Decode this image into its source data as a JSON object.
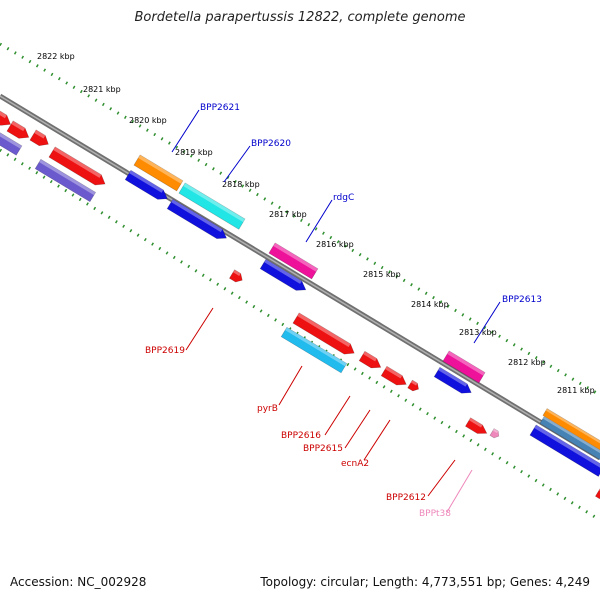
{
  "title": "Bordetella parapertussis 12822, complete genome",
  "footer": {
    "accession": "Accession: NC_002928",
    "stats": "Topology: circular; Length: 4,773,551 bp; Genes: 4,249"
  },
  "colors": {
    "backbone": "#808080",
    "tick": "#2f8f2f",
    "label_top": "#0000cc",
    "label_bottom": "#cc0000",
    "label_trna": "#ee88bb"
  },
  "ticks": [
    "2822 kbp",
    "2821 kbp",
    "2820 kbp",
    "2819 kbp",
    "2818 kbp",
    "2817 kbp",
    "2816 kbp",
    "2815 kbp",
    "2814 kbp",
    "2813 kbp",
    "2812 kbp",
    "2811 kbp"
  ],
  "labels_top": [
    "BPP2621",
    "BPP2620",
    "rdgC",
    "BPP2613"
  ],
  "labels_bottom": [
    "BPP2619",
    "pyrB",
    "BPP2616",
    "BPP2615",
    "ecnA2",
    "BPP2612"
  ],
  "labels_trna": [
    "BPPt38"
  ]
}
